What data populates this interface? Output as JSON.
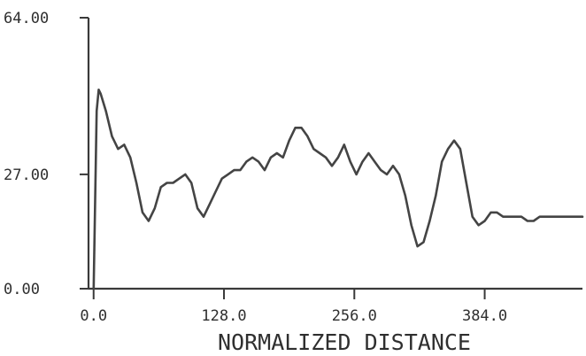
{
  "chart_data": {
    "type": "line",
    "xlabel": "NORMALIZED DISTANCE",
    "ylabel": "",
    "ylim": [
      0,
      64
    ],
    "xlim": [
      -5,
      480
    ],
    "grid": false,
    "y_tick_labels": [
      {
        "value": 0,
        "label": "0.00"
      },
      {
        "value": 27,
        "label": "27.00"
      },
      {
        "value": 64,
        "label": "64.00"
      }
    ],
    "x_tick_labels": [
      {
        "value": 0,
        "label": "0.0"
      },
      {
        "value": 128,
        "label": "128.0"
      },
      {
        "value": 256,
        "label": "256.0"
      },
      {
        "value": 384,
        "label": "384.0"
      }
    ],
    "series": [
      {
        "line_color": "#444444",
        "x": [
          0,
          3,
          5,
          7,
          12,
          18,
          24,
          30,
          36,
          42,
          48,
          54,
          60,
          66,
          72,
          78,
          84,
          90,
          96,
          102,
          108,
          114,
          120,
          126,
          132,
          138,
          144,
          150,
          156,
          162,
          168,
          174,
          180,
          186,
          192,
          198,
          204,
          210,
          216,
          222,
          228,
          234,
          240,
          246,
          252,
          258,
          264,
          270,
          276,
          282,
          288,
          294,
          300,
          306,
          312,
          318,
          324,
          330,
          336,
          342,
          348,
          354,
          360,
          366,
          372,
          378,
          384,
          390,
          396,
          402,
          408,
          414,
          420,
          426,
          432,
          438,
          444,
          450,
          456,
          462,
          468,
          474,
          480
        ],
        "y": [
          0,
          42,
          47,
          46,
          42,
          36,
          33,
          34,
          31,
          25,
          18,
          16,
          19,
          24,
          25,
          25,
          26,
          27,
          25,
          19,
          17,
          20,
          23,
          26,
          27,
          28,
          28,
          30,
          31,
          30,
          28,
          31,
          32,
          31,
          35,
          38,
          38,
          36,
          33,
          32,
          31,
          29,
          31,
          34,
          30,
          27,
          30,
          32,
          30,
          28,
          27,
          29,
          27,
          22,
          15,
          10,
          11,
          16,
          22,
          30,
          33,
          35,
          33,
          25,
          17,
          15,
          16,
          18,
          18,
          17,
          17,
          17,
          17,
          16,
          16,
          17,
          17,
          17,
          17,
          17,
          17,
          17,
          17
        ]
      }
    ]
  }
}
